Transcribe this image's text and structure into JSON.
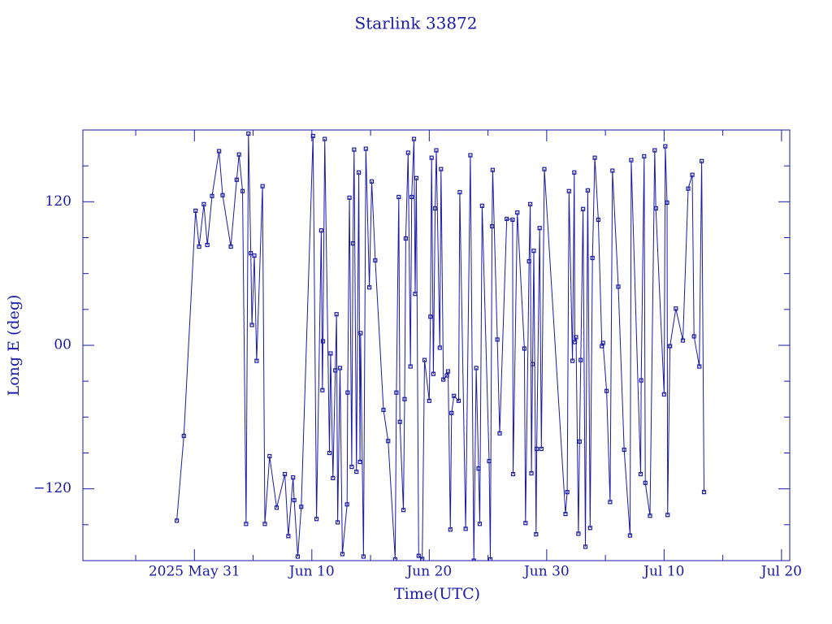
{
  "chart_data": {
    "type": "line",
    "title": "Starlink 33872",
    "x_label": "Time(UTC)",
    "y_label": "Long E (deg)",
    "color": "#1a1aa6",
    "xlim": [
      141.5,
      201.7
    ],
    "xticks": [
      {
        "value": 151,
        "label": "2025 May 31"
      },
      {
        "value": 161,
        "label": "Jun 10"
      },
      {
        "value": 171,
        "label": "Jun 20"
      },
      {
        "value": 181,
        "label": "Jun 30"
      },
      {
        "value": 191,
        "label": "Jul 10"
      },
      {
        "value": 201,
        "label": "Jul 20"
      }
    ],
    "xminorticks": [
      146,
      156,
      166,
      176,
      186,
      196
    ],
    "ylim": [
      -180,
      180
    ],
    "yticks": [
      {
        "value": -120,
        "label": "−120"
      },
      {
        "value": 0,
        "label": "00"
      },
      120
    ],
    "yminorticks": [
      -150,
      -90,
      -60,
      -30,
      30,
      60,
      90,
      150
    ],
    "x": [
      149.5,
      150.1,
      151.1,
      151.4,
      151.8,
      152.1,
      152.5,
      153.1,
      153.4,
      154.1,
      154.6,
      154.8,
      155.1,
      155.4,
      155.6,
      155.8,
      155.9,
      156.1,
      156.3,
      156.8,
      157.0,
      157.4,
      158.0,
      158.7,
      159.0,
      159.4,
      159.5,
      159.8,
      160.1,
      161.1,
      161.4,
      161.8,
      161.9,
      161.95,
      162.1,
      162.5,
      162.6,
      162.8,
      163.0,
      163.1,
      163.2,
      163.4,
      163.6,
      164.0,
      164.05,
      164.2,
      164.4,
      164.5,
      164.6,
      164.8,
      165.0,
      165.1,
      165.15,
      165.4,
      165.6,
      165.9,
      166.1,
      166.4,
      167.1,
      167.5,
      168.1,
      168.2,
      168.4,
      168.5,
      168.8,
      168.9,
      169.0,
      169.2,
      169.4,
      169.5,
      169.7,
      169.8,
      169.9,
      170.1,
      170.4,
      170.6,
      171.0,
      171.1,
      171.2,
      171.35,
      171.5,
      171.6,
      171.9,
      172.0,
      172.2,
      172.5,
      172.6,
      172.8,
      172.9,
      173.1,
      173.5,
      173.6,
      174.1,
      174.5,
      174.8,
      175.0,
      175.2,
      175.3,
      175.5,
      176.1,
      176.2,
      176.35,
      176.4,
      176.8,
      177.0,
      177.6,
      178.1,
      178.14,
      178.5,
      179.1,
      179.2,
      179.5,
      179.6,
      179.7,
      179.8,
      179.9,
      180.1,
      180.15,
      180.4,
      180.55,
      180.8,
      182.6,
      182.75,
      182.9,
      183.2,
      183.35,
      183.4,
      183.5,
      183.7,
      183.8,
      183.9,
      184.1,
      184.3,
      184.5,
      184.7,
      184.9,
      185.1,
      185.4,
      185.7,
      185.8,
      186.1,
      186.4,
      186.6,
      187.1,
      187.6,
      188.1,
      188.2,
      189.0,
      189.05,
      189.3,
      189.4,
      189.8,
      190.2,
      190.3,
      191.0,
      191.1,
      191.25,
      191.3,
      191.5,
      192.0,
      192.6,
      193.05,
      193.4,
      193.55,
      194.0,
      194.2,
      194.4
    ],
    "series": [
      {
        "name": "Long E",
        "values": [
          -146.6,
          -75.7,
          112.5,
          82.5,
          118,
          83.9,
          124.8,
          162.3,
          125.5,
          82.5,
          138.4,
          159.5,
          128.9,
          -149.3,
          177,
          77,
          17,
          75,
          -13,
          133,
          -149.3,
          -92.7,
          -135.7,
          -107.7,
          -159.5,
          -110.5,
          -129.5,
          -176.6,
          -135,
          175,
          -145.2,
          96,
          -37.5,
          3.4,
          172.5,
          -90,
          -6.8,
          -111,
          -21,
          26,
          -148,
          -19,
          -174.5,
          -133,
          -39.5,
          123.4,
          -101.6,
          85.2,
          163.6,
          -105.7,
          144.5,
          -97.5,
          10.2,
          -176.6,
          164.3,
          48.4,
          137,
          71,
          -54,
          -80,
          -179,
          -39.5,
          124,
          -64,
          -137.7,
          -45,
          89.3,
          161,
          -17.7,
          124,
          172.5,
          43,
          139.8,
          -176,
          -178.6,
          -12.3,
          -46.4,
          23.9,
          156.8,
          -23.9,
          114.5,
          163,
          -2,
          147.3,
          -28.6,
          -25.2,
          -21.8,
          -154,
          -56.6,
          -42.3,
          -46.4,
          128,
          -153.4,
          158.9,
          -180,
          -19,
          -103,
          -149.3,
          116.6,
          -96.8,
          -179,
          99.5,
          146.6,
          4.8,
          -73.6,
          105.7,
          105,
          -107.7,
          111,
          -2.7,
          -148.6,
          70.2,
          118,
          -107,
          -15.7,
          79,
          -158,
          -86.6,
          98,
          -86.6,
          147.3,
          -141,
          -122.7,
          128.9,
          -13,
          144.5,
          2.7,
          6.8,
          -157.5,
          -80.5,
          -12.3,
          113.9,
          -168.4,
          129.5,
          -152.7,
          73,
          156.8,
          105,
          -0.7,
          2,
          -38.2,
          -131,
          146,
          49,
          -87.3,
          -159,
          154.8,
          -107.7,
          -29.3,
          158,
          -115,
          -142.5,
          163,
          114.5,
          -41,
          166.4,
          119.3,
          -141.8,
          -0.7,
          30.7,
          4,
          131,
          142.5,
          7.5,
          -17.7,
          154,
          -122.7
        ]
      }
    ]
  }
}
